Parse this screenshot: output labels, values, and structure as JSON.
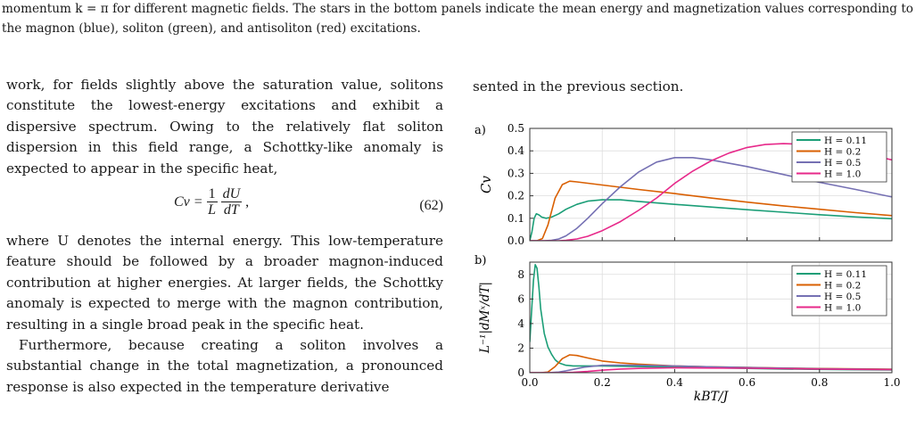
{
  "caption": {
    "text": "momentum k = π for different magnetic fields. The stars in the bottom panels indicate the mean energy and magnetization values corresponding to the magnon (blue), soliton (green), and antisoliton (red) excitations."
  },
  "left_column": {
    "para1": "work, for fields slightly above the saturation value, solitons constitute the lowest-energy excitations and exhibit a dispersive spectrum. Owing to the relatively flat soliton dispersion in this field range, a Schottky-like anomaly is expected to appear in the specific heat,",
    "equation": {
      "lhs": "Cv =",
      "frac1_num": "1",
      "frac1_den": "L",
      "frac2_num": "dU",
      "frac2_den": "dT",
      "trail": ",",
      "number": "(62)"
    },
    "para2": "where U denotes the internal energy. This low-temperature feature should be followed by a broader magnon-induced contribution at higher energies. At larger fields, the Schottky anomaly is expected to merge with the magnon contribution, resulting in a single broad peak in the specific heat.",
    "para3": "Furthermore, because creating a soliton involves a substantial change in the total magnetization, a pronounced response is also expected in the temperature derivative"
  },
  "right_column": {
    "text": "sented in the previous section."
  },
  "chart_data": [
    {
      "type": "line",
      "panel_label": "a)",
      "ylabel": "Cv",
      "xlim": [
        0,
        1.0
      ],
      "ylim": [
        0,
        0.5
      ],
      "yticks": [
        "0.0",
        "0.1",
        "0.2",
        "0.3",
        "0.4",
        "0.5"
      ],
      "grid": true,
      "legend": "top-right",
      "series": [
        {
          "name": "H = 0.11",
          "color": "#1b9e77",
          "x": [
            0,
            0.006,
            0.012,
            0.018,
            0.025,
            0.033,
            0.045,
            0.06,
            0.08,
            0.1,
            0.13,
            0.16,
            0.2,
            0.25,
            0.3,
            0.4,
            0.5,
            0.6,
            0.7,
            0.8,
            0.9,
            1.0
          ],
          "y": [
            0,
            0.04,
            0.1,
            0.12,
            0.115,
            0.105,
            0.1,
            0.105,
            0.12,
            0.14,
            0.162,
            0.176,
            0.182,
            0.182,
            0.175,
            0.162,
            0.15,
            0.138,
            0.127,
            0.116,
            0.106,
            0.098
          ]
        },
        {
          "name": "H = 0.2",
          "color": "#d95f02",
          "x": [
            0,
            0.02,
            0.035,
            0.05,
            0.07,
            0.09,
            0.11,
            0.13,
            0.16,
            0.2,
            0.3,
            0.4,
            0.5,
            0.6,
            0.7,
            0.8,
            0.9,
            1.0
          ],
          "y": [
            0,
            0,
            0.01,
            0.07,
            0.19,
            0.25,
            0.265,
            0.262,
            0.256,
            0.248,
            0.228,
            0.21,
            0.19,
            0.172,
            0.155,
            0.14,
            0.125,
            0.112
          ]
        },
        {
          "name": "H = 0.5",
          "color": "#7570b3",
          "x": [
            0,
            0.04,
            0.06,
            0.08,
            0.1,
            0.13,
            0.16,
            0.2,
            0.25,
            0.3,
            0.35,
            0.4,
            0.45,
            0.5,
            0.6,
            0.7,
            0.8,
            0.9,
            1.0
          ],
          "y": [
            0,
            0,
            0.002,
            0.008,
            0.022,
            0.055,
            0.1,
            0.165,
            0.24,
            0.305,
            0.35,
            0.37,
            0.37,
            0.36,
            0.33,
            0.295,
            0.26,
            0.228,
            0.195
          ]
        },
        {
          "name": "H = 1.0",
          "color": "#e7298a",
          "x": [
            0,
            0.08,
            0.1,
            0.13,
            0.16,
            0.2,
            0.25,
            0.3,
            0.35,
            0.4,
            0.45,
            0.5,
            0.55,
            0.6,
            0.65,
            0.7,
            0.75,
            0.8,
            0.85,
            0.9,
            0.95,
            1.0
          ],
          "y": [
            0,
            0,
            0.002,
            0.008,
            0.02,
            0.045,
            0.085,
            0.135,
            0.19,
            0.255,
            0.31,
            0.355,
            0.39,
            0.415,
            0.428,
            0.432,
            0.43,
            0.423,
            0.41,
            0.395,
            0.378,
            0.36
          ]
        }
      ]
    },
    {
      "type": "line",
      "panel_label": "b)",
      "ylabel": "L⁻¹|dMˣ/dT|",
      "xlabel": "kBT/J",
      "xlim": [
        0,
        1.0
      ],
      "ylim": [
        0,
        9
      ],
      "xticks": [
        "0.0",
        "0.2",
        "0.4",
        "0.6",
        "0.8",
        "1.0"
      ],
      "yticks": [
        "0",
        "2",
        "4",
        "6",
        "8"
      ],
      "grid": true,
      "legend": "top-right",
      "series": [
        {
          "name": "H = 0.11",
          "color": "#1b9e77",
          "x": [
            0,
            0.005,
            0.01,
            0.015,
            0.02,
            0.025,
            0.03,
            0.04,
            0.05,
            0.06,
            0.07,
            0.08,
            0.1,
            0.12,
            0.15,
            0.2,
            0.3,
            0.4,
            0.5,
            0.6,
            0.7,
            0.8,
            0.9,
            1.0
          ],
          "y": [
            2.5,
            5,
            7.5,
            8.8,
            8.5,
            7,
            5.2,
            3.2,
            2.1,
            1.5,
            1.05,
            0.8,
            0.6,
            0.55,
            0.55,
            0.55,
            0.5,
            0.45,
            0.4,
            0.35,
            0.3,
            0.27,
            0.24,
            0.22
          ]
        },
        {
          "name": "H = 0.2",
          "color": "#d95f02",
          "x": [
            0,
            0.03,
            0.05,
            0.07,
            0.09,
            0.11,
            0.13,
            0.16,
            0.2,
            0.25,
            0.3,
            0.4,
            0.5,
            0.6,
            0.7,
            0.8,
            0.9,
            1.0
          ],
          "y": [
            0,
            0,
            0.05,
            0.5,
            1.15,
            1.45,
            1.4,
            1.2,
            0.95,
            0.8,
            0.7,
            0.55,
            0.48,
            0.43,
            0.38,
            0.34,
            0.31,
            0.28
          ]
        },
        {
          "name": "H = 0.5",
          "color": "#7570b3",
          "x": [
            0,
            0.05,
            0.08,
            0.1,
            0.15,
            0.2,
            0.25,
            0.3,
            0.4,
            0.5,
            0.6,
            0.7,
            0.8,
            0.9,
            1.0
          ],
          "y": [
            0,
            0,
            0.05,
            0.15,
            0.45,
            0.6,
            0.62,
            0.6,
            0.55,
            0.48,
            0.42,
            0.37,
            0.33,
            0.3,
            0.27
          ]
        },
        {
          "name": "H = 1.0",
          "color": "#e7298a",
          "x": [
            0,
            0.08,
            0.12,
            0.16,
            0.2,
            0.25,
            0.3,
            0.4,
            0.5,
            0.6,
            0.7,
            0.8,
            0.9,
            1.0
          ],
          "y": [
            0,
            0,
            0.03,
            0.1,
            0.2,
            0.3,
            0.35,
            0.4,
            0.38,
            0.36,
            0.33,
            0.3,
            0.27,
            0.25
          ]
        }
      ]
    }
  ]
}
